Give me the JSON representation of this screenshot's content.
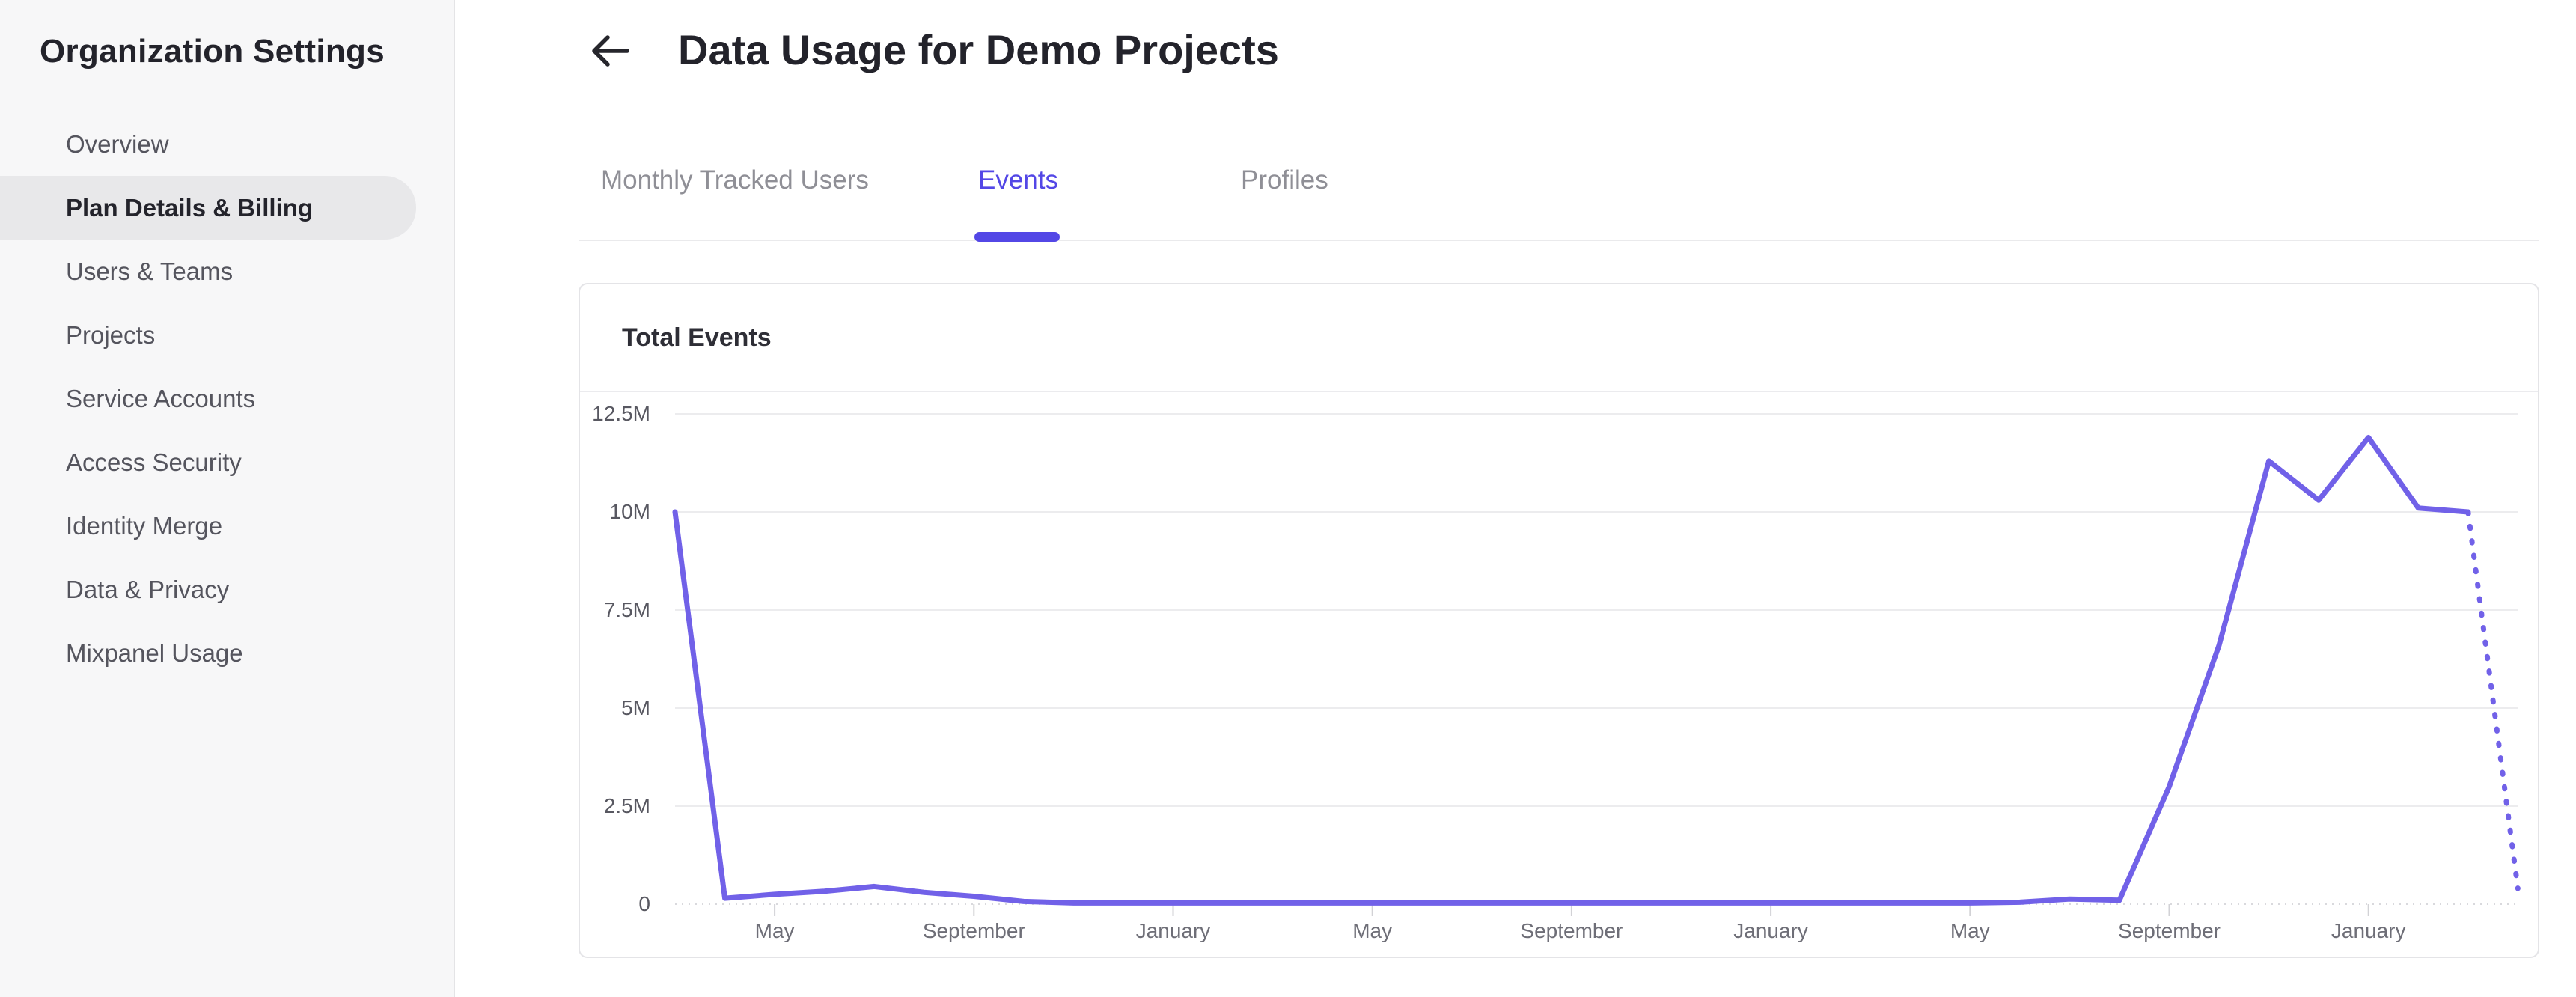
{
  "colors": {
    "page_bg": "#ffffff",
    "sidebar_bg": "#f7f7f8",
    "sidebar_border": "#e4e4e6",
    "pill": "#e8e8ea",
    "text_dark": "#23232b",
    "text_item": "#55555e",
    "text_tab": "#8f8f96",
    "accent": "#5347e6",
    "divider": "#eaeaec",
    "card_border": "#e4e4e7",
    "card_divider": "#ebebee",
    "text_card_title": "#2e2e36",
    "text_axis_y": "#585861",
    "text_axis_x": "#6e6e77",
    "gridline": "#ececee",
    "axis_line": "#d9d9dd",
    "tick": "#d2d2d6",
    "line": "#7161e8"
  },
  "sidebar": {
    "title": "Organization Settings",
    "items": [
      {
        "id": "overview",
        "label": "Overview",
        "active": false
      },
      {
        "id": "plan-details-billing",
        "label": "Plan Details & Billing",
        "active": true
      },
      {
        "id": "users-teams",
        "label": "Users & Teams",
        "active": false
      },
      {
        "id": "projects",
        "label": "Projects",
        "active": false
      },
      {
        "id": "service-accounts",
        "label": "Service Accounts",
        "active": false
      },
      {
        "id": "access-security",
        "label": "Access Security",
        "active": false
      },
      {
        "id": "identity-merge",
        "label": "Identity Merge",
        "active": false
      },
      {
        "id": "data-privacy",
        "label": "Data & Privacy",
        "active": false
      },
      {
        "id": "mixpanel-usage",
        "label": "Mixpanel Usage",
        "active": false
      }
    ]
  },
  "header": {
    "title": "Data Usage for Demo Projects",
    "back_icon": "left-arrow-icon"
  },
  "tabs": {
    "items": [
      {
        "id": "monthly-tracked-users",
        "label": "Monthly Tracked Users",
        "active": false
      },
      {
        "id": "events",
        "label": "Events",
        "active": true
      },
      {
        "id": "profiles",
        "label": "Profiles",
        "active": false
      }
    ]
  },
  "card": {
    "title": "Total Events"
  },
  "chart_data": {
    "type": "line",
    "title": "Total Events",
    "xlabel": "",
    "ylabel": "",
    "unit": "million events",
    "ylim": [
      0,
      12500000
    ],
    "grid": true,
    "legend": false,
    "y_tick_labels": [
      "12.5M",
      "10M",
      "7.5M",
      "5M",
      "2.5M",
      "0"
    ],
    "y_tick_values": [
      12500000,
      10000000,
      7500000,
      5000000,
      2500000,
      0
    ],
    "x_tick_labels": [
      "May",
      "September",
      "January",
      "May",
      "September",
      "January",
      "May",
      "September",
      "January"
    ],
    "x_tick_month_indices": [
      2,
      6,
      10,
      14,
      18,
      22,
      26,
      30,
      34
    ],
    "months": [
      "Mar",
      "Apr",
      "May",
      "Jun",
      "Jul",
      "Aug",
      "Sep",
      "Oct",
      "Nov",
      "Dec",
      "Jan",
      "Feb",
      "Mar",
      "Apr",
      "May",
      "Jun",
      "Jul",
      "Aug",
      "Sep",
      "Oct",
      "Nov",
      "Dec",
      "Jan",
      "Feb",
      "Mar",
      "Apr",
      "May",
      "Jun",
      "Jul",
      "Aug",
      "Sep",
      "Oct",
      "Nov",
      "Dec",
      "Jan",
      "Feb",
      "Mar",
      "Apr"
    ],
    "series": [
      {
        "name": "Total Events",
        "values_millions": [
          10,
          0.15,
          0.25,
          0.33,
          0.45,
          0.3,
          0.2,
          0.07,
          0.03,
          0.03,
          0.03,
          0.03,
          0.03,
          0.03,
          0.03,
          0.03,
          0.03,
          0.03,
          0.03,
          0.03,
          0.03,
          0.03,
          0.03,
          0.03,
          0.03,
          0.03,
          0.03,
          0.05,
          0.13,
          0.1,
          3.0,
          6.6,
          11.3,
          10.3,
          11.9,
          10.1,
          10.0,
          0.4
        ],
        "dotted_from_index": 36,
        "dotted_segment_meaning": "projected/incomplete period"
      }
    ]
  }
}
